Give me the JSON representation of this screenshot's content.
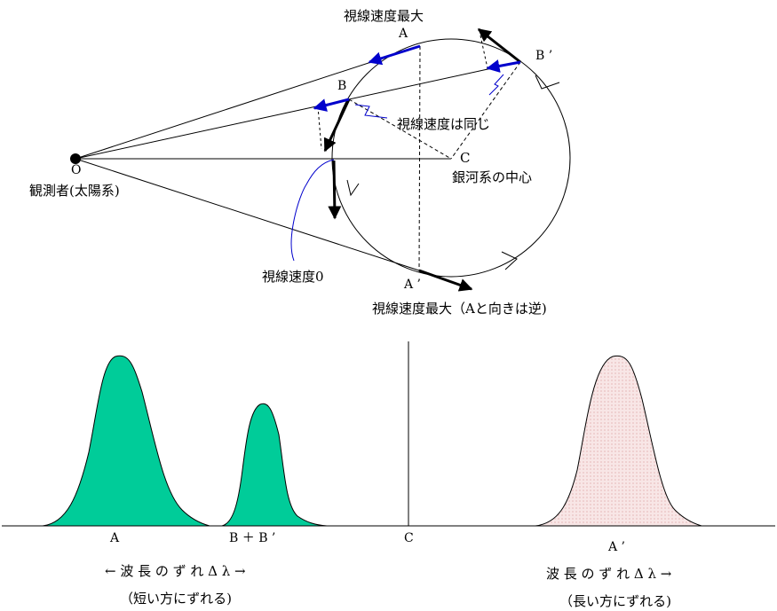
{
  "diagram": {
    "labels": {
      "max_speed_top": "視線速度最大",
      "point_a": "A",
      "point_b": "B",
      "point_b_prime": "B ’",
      "same_speed": "視線速度は同じ",
      "center_c": "C",
      "galactic_center": "銀河系の中心",
      "point_o": "O",
      "observer": "観測者(太陽系)",
      "zero_speed": "視線速度0",
      "point_a_prime": "A ’",
      "max_speed_bottom": "視線速度最大（Aと向きは逆)"
    },
    "colors": {
      "line": "#000000",
      "velocity_blue": "#0000cc",
      "peak_teal": "#00cc99",
      "peak_pink": "#f6dede"
    }
  },
  "spectrum": {
    "labels": {
      "peak_a": "A",
      "peak_bb": "B ＋ B ’",
      "center": "C",
      "peak_a_prime": "A ’",
      "shift_left": "← 波 長 の ず れ Δ λ →",
      "shift_left_note": "（短い方にずれる)",
      "shift_right": "波 長 の ず れ Δ λ →",
      "shift_right_note": "（長い方にずれる)"
    }
  }
}
